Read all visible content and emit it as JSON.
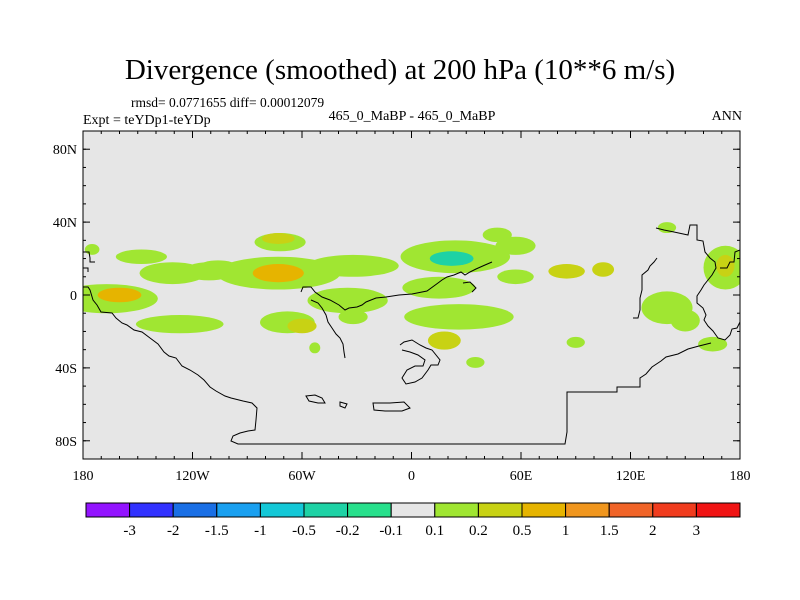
{
  "header": {
    "title": "Divergence (smoothed) at 200 hPa (10**6 m/s)",
    "stats": "rmsd= 0.0771655 diff= 0.00012079",
    "experiment": "Expt = teYDp1-teYDp",
    "case_label": "465_0_MaBP - 465_0_MaBP",
    "season": "ANN"
  },
  "chart_data": {
    "type": "contour-map",
    "title": "Divergence (smoothed) at 200 hPa (10**6 m/s)",
    "projection": "cylindrical equidistant",
    "xlim": [
      -180,
      180
    ],
    "ylim": [
      -90,
      90
    ],
    "x_ticks": [
      {
        "value": -180,
        "label": "180"
      },
      {
        "value": -120,
        "label": "120W"
      },
      {
        "value": -60,
        "label": "60W"
      },
      {
        "value": 0,
        "label": "0"
      },
      {
        "value": 60,
        "label": "60E"
      },
      {
        "value": 120,
        "label": "120E"
      },
      {
        "value": 180,
        "label": "180"
      }
    ],
    "y_ticks": [
      {
        "value": 80,
        "label": "80N"
      },
      {
        "value": 40,
        "label": "40N"
      },
      {
        "value": 0,
        "label": "0"
      },
      {
        "value": -40,
        "label": "40S"
      },
      {
        "value": -80,
        "label": "80S"
      }
    ],
    "background_color": "#e6e6e6",
    "colorbar": {
      "colors": [
        "#9314ff",
        "#3232ff",
        "#1a6fe5",
        "#1aa0f0",
        "#14c8d7",
        "#1ed2a5",
        "#28e08c",
        "#e6e6e6",
        "#a0e632",
        "#c8d214",
        "#e6b400",
        "#f0961e",
        "#f06428",
        "#f03c1e",
        "#f01414"
      ],
      "labels": [
        "-3",
        "-2",
        "-1.5",
        "-1",
        "-0.5",
        "-0.2",
        "-0.1",
        "0.1",
        "0.2",
        "0.5",
        "1",
        "1.5",
        "2",
        "3"
      ]
    },
    "regions": [
      {
        "lon": -167,
        "lat": -2,
        "rx": 28,
        "ry": 8,
        "level": "0.1"
      },
      {
        "lon": -160,
        "lat": 0,
        "rx": 12,
        "ry": 4,
        "level": "0.5"
      },
      {
        "lon": -131,
        "lat": 12,
        "rx": 18,
        "ry": 6,
        "level": "0.1"
      },
      {
        "lon": -111,
        "lat": 13,
        "rx": 14,
        "ry": 5,
        "level": "0.1"
      },
      {
        "lon": -148,
        "lat": 21,
        "rx": 14,
        "ry": 4,
        "level": "0.1"
      },
      {
        "lon": -106,
        "lat": 16,
        "rx": 10,
        "ry": 3,
        "level": "0.1"
      },
      {
        "lon": -127,
        "lat": -16,
        "rx": 24,
        "ry": 5,
        "level": "0.1"
      },
      {
        "lon": -73,
        "lat": 12,
        "rx": 34,
        "ry": 9,
        "level": "0.1"
      },
      {
        "lon": -73,
        "lat": 12,
        "rx": 14,
        "ry": 5,
        "level": "0.5"
      },
      {
        "lon": -72,
        "lat": 29,
        "rx": 14,
        "ry": 5,
        "level": "0.1"
      },
      {
        "lon": -73,
        "lat": 31,
        "rx": 9,
        "ry": 3,
        "level": "0.2"
      },
      {
        "lon": -32,
        "lat": 16,
        "rx": 25,
        "ry": 6,
        "level": "0.1"
      },
      {
        "lon": -68,
        "lat": -15,
        "rx": 15,
        "ry": 6,
        "level": "0.1"
      },
      {
        "lon": -60,
        "lat": -17,
        "rx": 8,
        "ry": 4,
        "level": "0.2"
      },
      {
        "lon": -35,
        "lat": -3,
        "rx": 22,
        "ry": 7,
        "level": "0.1"
      },
      {
        "lon": -32,
        "lat": -12,
        "rx": 8,
        "ry": 4,
        "level": "0.1"
      },
      {
        "lon": 24,
        "lat": 21,
        "rx": 30,
        "ry": 9,
        "level": "0.1"
      },
      {
        "lon": 22,
        "lat": 20,
        "rx": 12,
        "ry": 4,
        "level": "-0.2"
      },
      {
        "lon": 15,
        "lat": 4,
        "rx": 20,
        "ry": 6,
        "level": "0.1"
      },
      {
        "lon": 26,
        "lat": -12,
        "rx": 30,
        "ry": 7,
        "level": "0.1"
      },
      {
        "lon": 18,
        "lat": -25,
        "rx": 9,
        "ry": 5,
        "level": "0.2"
      },
      {
        "lon": 57,
        "lat": 10,
        "rx": 10,
        "ry": 4,
        "level": "0.1"
      },
      {
        "lon": 47,
        "lat": 33,
        "rx": 8,
        "ry": 4,
        "level": "0.1"
      },
      {
        "lon": 57,
        "lat": 27,
        "rx": 11,
        "ry": 5,
        "level": "0.1"
      },
      {
        "lon": 85,
        "lat": 13,
        "rx": 10,
        "ry": 4,
        "level": "0.2"
      },
      {
        "lon": 105,
        "lat": 14,
        "rx": 6,
        "ry": 4,
        "level": "0.2"
      },
      {
        "lon": 140,
        "lat": -7,
        "rx": 14,
        "ry": 9,
        "level": "0.1"
      },
      {
        "lon": 150,
        "lat": -14,
        "rx": 8,
        "ry": 6,
        "level": "0.1"
      },
      {
        "lon": 172,
        "lat": 15,
        "rx": 12,
        "ry": 12,
        "level": "0.1"
      },
      {
        "lon": 172,
        "lat": 16,
        "rx": 5,
        "ry": 6,
        "level": "0.2"
      },
      {
        "lon": 165,
        "lat": -27,
        "rx": 8,
        "ry": 4,
        "level": "0.1"
      },
      {
        "lon": 35,
        "lat": -37,
        "rx": 5,
        "ry": 3,
        "level": "0.1"
      },
      {
        "lon": 90,
        "lat": -26,
        "rx": 5,
        "ry": 3,
        "level": "0.1"
      },
      {
        "lon": 140,
        "lat": 37,
        "rx": 5,
        "ry": 3,
        "level": "0.1"
      },
      {
        "lon": -175,
        "lat": 25,
        "rx": 4,
        "ry": 3,
        "level": "0.1"
      },
      {
        "lon": -53,
        "lat": -29,
        "rx": 3,
        "ry": 3,
        "level": "0.1"
      }
    ]
  }
}
